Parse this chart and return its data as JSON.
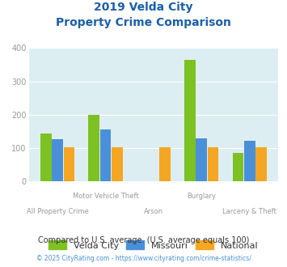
{
  "title_line1": "2019 Velda City",
  "title_line2": "Property Crime Comparison",
  "velda_city": [
    145,
    200,
    0,
    364,
    87
  ],
  "missouri": [
    127,
    157,
    0,
    130,
    121
  ],
  "national": [
    102,
    102,
    102,
    103,
    102
  ],
  "velda_city_color": "#7dc122",
  "missouri_color": "#4a90d9",
  "national_color": "#f5a623",
  "bg_color": "#ddeef3",
  "title_color": "#1a5fa8",
  "axis_label_color": "#999999",
  "ylim": [
    0,
    400
  ],
  "yticks": [
    0,
    100,
    200,
    300,
    400
  ],
  "legend_labels": [
    "Velda City",
    "Missouri",
    "National"
  ],
  "legend_text_color": "#333333",
  "footnote1": "Compared to U.S. average. (U.S. average equals 100)",
  "footnote2": "© 2025 CityRating.com - https://www.cityrating.com/crime-statistics/",
  "footnote1_color": "#333333",
  "footnote2_color": "#4a90d9",
  "top_labels": [
    "",
    "Motor Vehicle Theft",
    "",
    "Burglary",
    ""
  ],
  "bot_labels": [
    "All Property Crime",
    "",
    "Arson",
    "",
    "Larceny & Theft"
  ]
}
